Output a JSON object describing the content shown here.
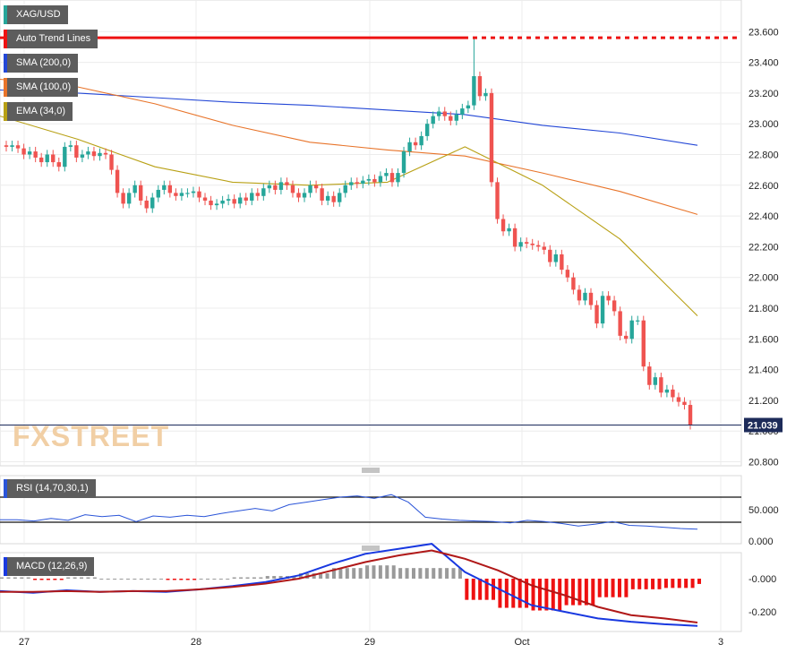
{
  "symbol": "XAG/USD",
  "watermark": "FXSTREET",
  "legend": {
    "trend": "Auto Trend Lines",
    "sma200": "SMA (200,0)",
    "sma100": "SMA (100,0)",
    "ema34": "EMA (34,0)"
  },
  "rsi_label": "RSI (14,70,30,1)",
  "macd_label": "MACD (12,26,9)",
  "last_price_label": "21.039",
  "colors": {
    "up": "#26a69a",
    "down": "#ef5350",
    "sma200": "#2347d6",
    "sma100": "#e8742a",
    "ema34": "#b8a014",
    "trend": "#ee1111",
    "rsi": "#2a54d8",
    "macd": "#1838e0",
    "signal": "#b01818",
    "hist_pos": "#9a9a9a",
    "hist_neg": "#ee1111"
  },
  "chart_data": {
    "type": "candlestick",
    "x_ticks": [
      "27",
      "28",
      "29",
      "Oct",
      "3"
    ],
    "y_ticks": [
      "23.600",
      "23.400",
      "23.200",
      "23.000",
      "22.800",
      "22.600",
      "22.400",
      "22.200",
      "22.000",
      "21.800",
      "21.600",
      "21.400",
      "21.200",
      "21.000",
      "20.800"
    ],
    "ylim": [
      20.75,
      23.8
    ],
    "last_price": 21.039,
    "trend_line_level": 23.56,
    "candles_close": [
      22.85,
      22.86,
      22.84,
      22.8,
      22.82,
      22.78,
      22.75,
      22.8,
      22.75,
      22.72,
      22.85,
      22.86,
      22.78,
      22.8,
      22.82,
      22.79,
      22.81,
      22.8,
      22.7,
      22.55,
      22.48,
      22.55,
      22.6,
      22.5,
      22.45,
      22.52,
      22.57,
      22.6,
      22.55,
      22.53,
      22.55,
      22.55,
      22.56,
      22.52,
      22.5,
      22.47,
      22.48,
      22.5,
      22.51,
      22.48,
      22.52,
      22.5,
      22.55,
      22.53,
      22.58,
      22.6,
      22.57,
      22.62,
      22.6,
      22.55,
      22.52,
      22.55,
      22.6,
      22.58,
      22.5,
      22.53,
      22.49,
      22.55,
      22.6,
      22.62,
      22.61,
      22.63,
      22.64,
      22.62,
      22.66,
      22.68,
      22.62,
      22.68,
      22.82,
      22.88,
      22.86,
      22.92,
      23.0,
      23.05,
      23.08,
      23.05,
      23.02,
      23.06,
      23.1,
      23.12,
      23.31,
      23.18,
      23.2,
      22.62,
      22.38,
      22.3,
      22.32,
      22.2,
      22.23,
      22.22,
      22.21,
      22.2,
      22.18,
      22.1,
      22.15,
      22.05,
      22.0,
      21.92,
      21.85,
      21.9,
      21.82,
      21.7,
      21.88,
      21.85,
      21.78,
      21.62,
      21.6,
      21.72,
      21.72,
      21.42,
      21.3,
      21.35,
      21.25,
      21.27,
      21.22,
      21.19,
      21.17,
      21.04
    ],
    "series": [
      {
        "name": "SMA (200,0)",
        "values": [
          23.22,
          23.2,
          23.17,
          23.14,
          23.12,
          23.09,
          23.06,
          22.99,
          22.94,
          22.86
        ]
      },
      {
        "name": "SMA (100,0)",
        "values": [
          23.29,
          23.24,
          23.13,
          22.99,
          22.88,
          22.83,
          22.79,
          22.68,
          22.56,
          22.41
        ]
      },
      {
        "name": "EMA (34,0)",
        "values": [
          23.05,
          22.9,
          22.72,
          22.62,
          22.6,
          22.62,
          22.85,
          22.6,
          22.25,
          21.75
        ]
      }
    ],
    "rsi": {
      "levels": [
        70,
        30
      ],
      "y_ticks": [
        "50.000",
        "0.000"
      ],
      "values": [
        34,
        34,
        32,
        36,
        33,
        42,
        39,
        41,
        31,
        40,
        38,
        41,
        39,
        44,
        48,
        52,
        48,
        58,
        62,
        66,
        70,
        72,
        68,
        74,
        62,
        38,
        35,
        33,
        32,
        31,
        29,
        33,
        31,
        28,
        24,
        27,
        31,
        25,
        24,
        22,
        20,
        19
      ]
    },
    "macd": {
      "y_ticks": [
        "-0.000",
        "-0.200"
      ],
      "macd": [
        -0.075,
        -0.085,
        -0.07,
        -0.08,
        -0.075,
        -0.08,
        -0.065,
        -0.045,
        -0.02,
        0.02,
        0.09,
        0.15,
        0.18,
        0.21,
        0.04,
        -0.06,
        -0.16,
        -0.2,
        -0.24,
        -0.26,
        -0.275,
        -0.285
      ],
      "signal": [
        -0.08,
        -0.08,
        -0.075,
        -0.08,
        -0.075,
        -0.075,
        -0.065,
        -0.05,
        -0.03,
        0.0,
        0.05,
        0.1,
        0.14,
        0.17,
        0.12,
        0.05,
        -0.04,
        -0.1,
        -0.17,
        -0.22,
        -0.24,
        -0.265
      ]
    }
  }
}
